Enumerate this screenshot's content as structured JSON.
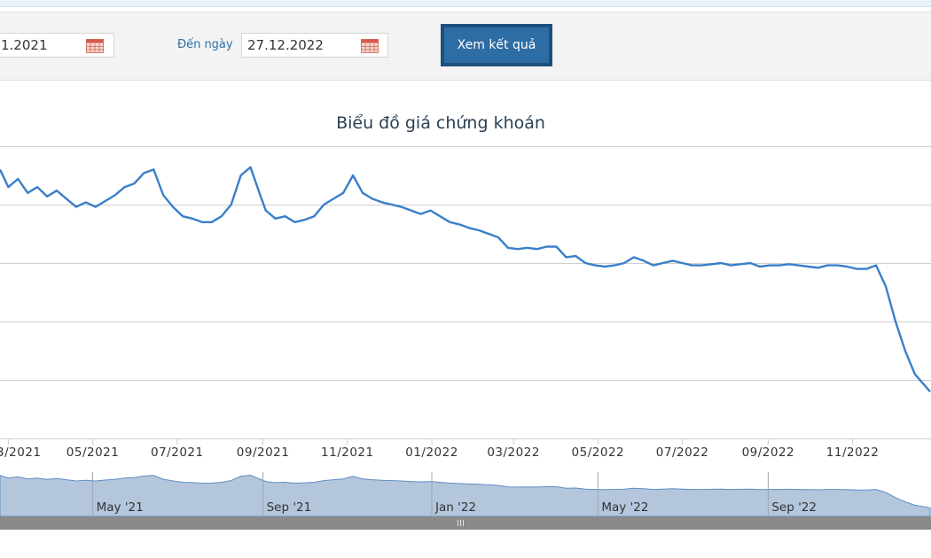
{
  "filter": {
    "from_date": "1.2021",
    "to_label": "Đến ngày",
    "to_date": "27.12.2022",
    "submit_label": "Xem kết quả",
    "calendar_icon": "calendar-icon"
  },
  "chart_data": {
    "type": "line",
    "title": "Biểu đồ giá chứng khoán",
    "x_tick_labels": [
      "3/2021",
      "05/2021",
      "07/2021",
      "09/2021",
      "11/2021",
      "01/2022",
      "03/2022",
      "05/2022",
      "07/2022",
      "09/2022",
      "11/2022"
    ],
    "navigator_labels": [
      "May '21",
      "Sep '21",
      "Jan '22",
      "May '22",
      "Sep '22"
    ],
    "grid": true,
    "line_color": "#3a7fc9",
    "navigator_fill": "#b4c6dc",
    "series": [
      {
        "x": [
          "2021-02-23",
          "2021-03-01",
          "2021-03-08",
          "2021-03-15",
          "2021-03-22",
          "2021-03-29",
          "2021-04-05",
          "2021-04-12",
          "2021-04-19",
          "2021-04-26",
          "2021-05-03",
          "2021-05-10",
          "2021-05-17",
          "2021-05-24",
          "2021-05-31",
          "2021-06-07",
          "2021-06-14",
          "2021-06-21",
          "2021-06-28",
          "2021-07-05",
          "2021-07-12",
          "2021-07-19",
          "2021-07-26",
          "2021-08-02",
          "2021-08-09",
          "2021-08-16",
          "2021-08-23",
          "2021-08-30",
          "2021-09-03",
          "2021-09-10",
          "2021-09-17",
          "2021-09-24",
          "2021-10-01",
          "2021-10-08",
          "2021-10-15",
          "2021-10-22",
          "2021-10-29",
          "2021-11-05",
          "2021-11-12",
          "2021-11-19",
          "2021-11-26",
          "2021-12-03",
          "2021-12-10",
          "2021-12-17",
          "2021-12-24",
          "2021-12-31",
          "2022-01-07",
          "2022-01-14",
          "2022-01-21",
          "2022-01-28",
          "2022-02-04",
          "2022-02-11",
          "2022-02-18",
          "2022-02-25",
          "2022-03-04",
          "2022-03-11",
          "2022-03-18",
          "2022-03-25",
          "2022-04-01",
          "2022-04-08",
          "2022-04-15",
          "2022-04-22",
          "2022-04-29",
          "2022-05-06",
          "2022-05-13",
          "2022-05-20",
          "2022-05-27",
          "2022-06-03",
          "2022-06-10",
          "2022-06-17",
          "2022-06-24",
          "2022-07-01",
          "2022-07-08",
          "2022-07-15",
          "2022-07-22",
          "2022-07-29",
          "2022-08-05",
          "2022-08-12",
          "2022-08-19",
          "2022-08-26",
          "2022-09-02",
          "2022-09-09",
          "2022-09-16",
          "2022-09-23",
          "2022-09-30",
          "2022-10-07",
          "2022-10-14",
          "2022-10-21",
          "2022-10-28",
          "2022-11-04",
          "2022-11-11",
          "2022-11-18",
          "2022-11-25",
          "2022-12-02",
          "2022-12-09",
          "2022-12-16",
          "2022-12-27"
        ],
        "y": [
          4.3,
          4.15,
          4.22,
          4.1,
          4.15,
          4.07,
          4.12,
          4.05,
          3.98,
          4.02,
          3.98,
          4.03,
          4.08,
          4.15,
          4.18,
          4.27,
          4.3,
          4.08,
          3.98,
          3.9,
          3.88,
          3.85,
          3.85,
          3.9,
          4.0,
          4.25,
          4.32,
          4.08,
          3.95,
          3.88,
          3.9,
          3.85,
          3.87,
          3.9,
          4.0,
          4.05,
          4.1,
          4.25,
          4.1,
          4.05,
          4.02,
          4.0,
          3.98,
          3.95,
          3.92,
          3.95,
          3.9,
          3.85,
          3.83,
          3.8,
          3.78,
          3.75,
          3.72,
          3.63,
          3.62,
          3.63,
          3.62,
          3.64,
          3.64,
          3.55,
          3.56,
          3.5,
          3.48,
          3.47,
          3.48,
          3.5,
          3.55,
          3.52,
          3.48,
          3.5,
          3.52,
          3.5,
          3.48,
          3.48,
          3.49,
          3.5,
          3.48,
          3.49,
          3.5,
          3.47,
          3.48,
          3.48,
          3.49,
          3.48,
          3.47,
          3.46,
          3.48,
          3.48,
          3.47,
          3.45,
          3.45,
          3.48,
          3.3,
          3.0,
          2.75,
          2.55,
          2.4
        ]
      }
    ]
  }
}
